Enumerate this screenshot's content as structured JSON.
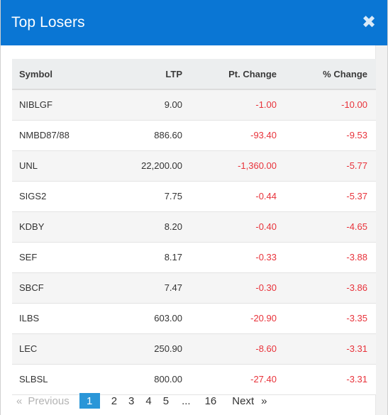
{
  "modal": {
    "title": "Top Losers",
    "close_glyph": "✖"
  },
  "table": {
    "headers": [
      "Symbol",
      "LTP",
      "Pt. Change",
      "% Change"
    ],
    "rows": [
      {
        "symbol": "NIBLGF",
        "ltp": "9.00",
        "pt_change": "-1.00",
        "pct_change": "-10.00"
      },
      {
        "symbol": "NMBD87/88",
        "ltp": "886.60",
        "pt_change": "-93.40",
        "pct_change": "-9.53"
      },
      {
        "symbol": "UNL",
        "ltp": "22,200.00",
        "pt_change": "-1,360.00",
        "pct_change": "-5.77"
      },
      {
        "symbol": "SIGS2",
        "ltp": "7.75",
        "pt_change": "-0.44",
        "pct_change": "-5.37"
      },
      {
        "symbol": "KDBY",
        "ltp": "8.20",
        "pt_change": "-0.40",
        "pct_change": "-4.65"
      },
      {
        "symbol": "SEF",
        "ltp": "8.17",
        "pt_change": "-0.33",
        "pct_change": "-3.88"
      },
      {
        "symbol": "SBCF",
        "ltp": "7.47",
        "pt_change": "-0.30",
        "pct_change": "-3.86"
      },
      {
        "symbol": "ILBS",
        "ltp": "603.00",
        "pt_change": "-20.90",
        "pct_change": "-3.35"
      },
      {
        "symbol": "LEC",
        "ltp": "250.90",
        "pt_change": "-8.60",
        "pct_change": "-3.31"
      },
      {
        "symbol": "SLBSL",
        "ltp": "800.00",
        "pt_change": "-27.40",
        "pct_change": "-3.31"
      }
    ]
  },
  "pagination": {
    "prev_arrow": "«",
    "prev_label": "Previous",
    "pages": [
      "1",
      "2",
      "3",
      "4",
      "5",
      "...",
      "16"
    ],
    "active_page": "1",
    "next_label": "Next",
    "next_arrow": "»"
  },
  "colors": {
    "header_bg": "#0a76d4",
    "negative": "#e8323a",
    "active_page": "#2a96d8"
  }
}
